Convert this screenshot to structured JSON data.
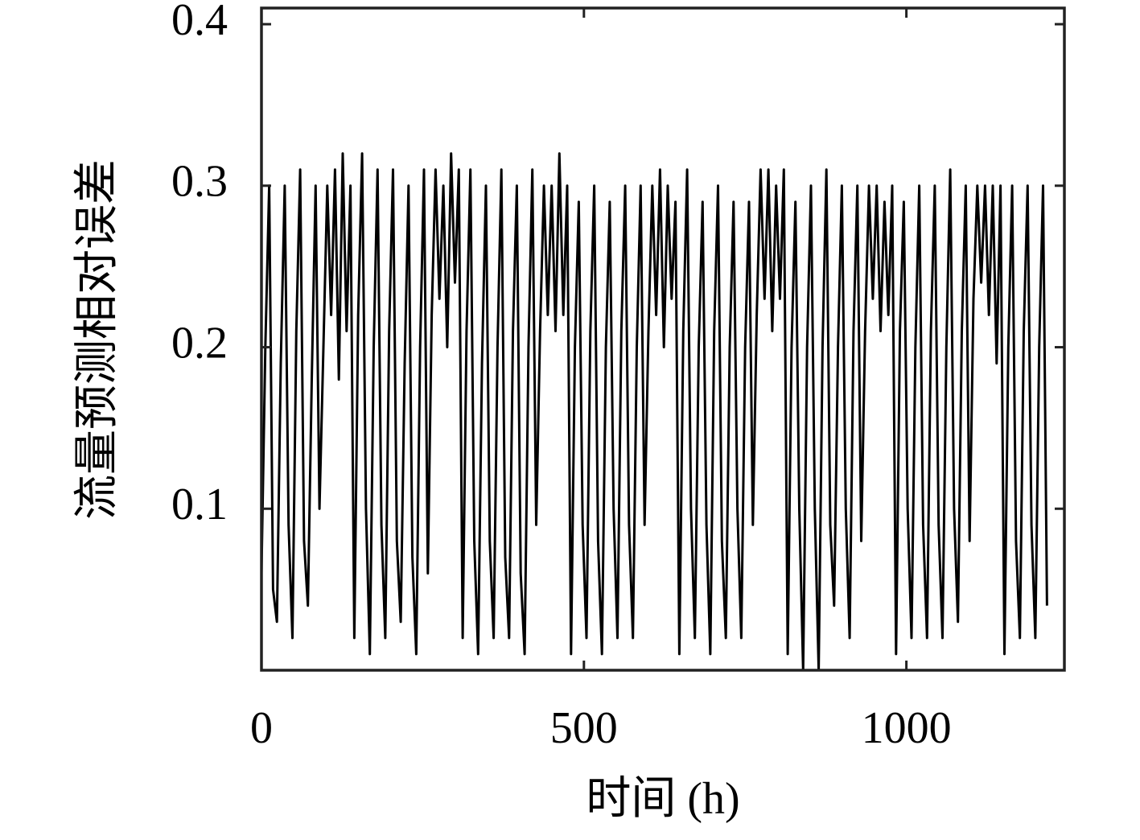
{
  "chart_data": {
    "type": "line",
    "xlabel": "时间 (h)",
    "ylabel": "流量预测相对误差",
    "color": "#000000",
    "xlim": [
      0,
      1245
    ],
    "ylim": [
      0,
      0.41
    ],
    "xticks": [
      0,
      500,
      1000
    ],
    "yticks": [
      0.1,
      0.2,
      0.3,
      0.4
    ],
    "x": [
      0,
      6,
      12,
      18,
      24,
      30,
      36,
      42,
      48,
      54,
      60,
      66,
      72,
      78,
      84,
      90,
      96,
      102,
      108,
      114,
      120,
      126,
      132,
      138,
      144,
      150,
      156,
      162,
      168,
      174,
      180,
      186,
      192,
      198,
      204,
      210,
      216,
      222,
      228,
      234,
      240,
      246,
      252,
      258,
      264,
      270,
      276,
      282,
      288,
      294,
      300,
      306,
      312,
      318,
      324,
      330,
      336,
      342,
      348,
      354,
      360,
      366,
      372,
      378,
      384,
      390,
      396,
      402,
      408,
      414,
      420,
      426,
      432,
      438,
      444,
      450,
      456,
      462,
      468,
      474,
      480,
      486,
      492,
      498,
      504,
      510,
      516,
      522,
      528,
      534,
      540,
      546,
      552,
      558,
      564,
      570,
      576,
      582,
      588,
      594,
      600,
      606,
      612,
      618,
      624,
      630,
      636,
      642,
      648,
      654,
      660,
      666,
      672,
      678,
      684,
      690,
      696,
      702,
      708,
      714,
      720,
      726,
      732,
      738,
      744,
      750,
      756,
      762,
      768,
      774,
      780,
      786,
      792,
      798,
      804,
      810,
      816,
      822,
      828,
      834,
      840,
      846,
      852,
      858,
      864,
      870,
      876,
      882,
      888,
      894,
      900,
      906,
      912,
      918,
      924,
      930,
      936,
      942,
      948,
      954,
      960,
      966,
      972,
      978,
      984,
      990,
      996,
      1002,
      1008,
      1014,
      1020,
      1026,
      1032,
      1038,
      1044,
      1050,
      1056,
      1062,
      1068,
      1074,
      1080,
      1086,
      1092,
      1098,
      1104,
      1110,
      1116,
      1122,
      1128,
      1134,
      1140,
      1146,
      1152,
      1158,
      1164,
      1170,
      1176,
      1182,
      1188,
      1194,
      1200,
      1206,
      1212,
      1218
    ],
    "values": [
      0.06,
      0.2,
      0.3,
      0.05,
      0.03,
      0.19,
      0.3,
      0.09,
      0.02,
      0.21,
      0.31,
      0.08,
      0.04,
      0.18,
      0.3,
      0.1,
      0.2,
      0.3,
      0.22,
      0.31,
      0.18,
      0.32,
      0.21,
      0.3,
      0.02,
      0.22,
      0.32,
      0.1,
      0.01,
      0.2,
      0.31,
      0.09,
      0.02,
      0.21,
      0.31,
      0.08,
      0.03,
      0.19,
      0.3,
      0.07,
      0.01,
      0.2,
      0.31,
      0.06,
      0.22,
      0.31,
      0.23,
      0.3,
      0.2,
      0.32,
      0.24,
      0.31,
      0.02,
      0.21,
      0.31,
      0.08,
      0.01,
      0.19,
      0.3,
      0.08,
      0.02,
      0.2,
      0.31,
      0.07,
      0.02,
      0.21,
      0.3,
      0.06,
      0.01,
      0.2,
      0.31,
      0.09,
      0.21,
      0.3,
      0.22,
      0.3,
      0.21,
      0.32,
      0.22,
      0.3,
      0.01,
      0.2,
      0.29,
      0.09,
      0.02,
      0.21,
      0.3,
      0.08,
      0.01,
      0.2,
      0.29,
      0.1,
      0.02,
      0.21,
      0.3,
      0.09,
      0.02,
      0.2,
      0.3,
      0.09,
      0.21,
      0.3,
      0.22,
      0.31,
      0.2,
      0.3,
      0.23,
      0.29,
      0.01,
      0.21,
      0.31,
      0.1,
      0.02,
      0.2,
      0.29,
      0.09,
      0.01,
      0.21,
      0.3,
      0.08,
      0.02,
      0.2,
      0.29,
      0.1,
      0.02,
      0.2,
      0.29,
      0.09,
      0.22,
      0.31,
      0.23,
      0.31,
      0.21,
      0.3,
      0.23,
      0.31,
      0.01,
      0.2,
      0.29,
      0.1,
      0.0,
      0.2,
      0.3,
      0.1,
      0.0,
      0.2,
      0.31,
      0.09,
      0.04,
      0.2,
      0.3,
      0.1,
      0.02,
      0.21,
      0.3,
      0.08,
      0.21,
      0.3,
      0.23,
      0.3,
      0.21,
      0.29,
      0.22,
      0.3,
      0.01,
      0.21,
      0.29,
      0.1,
      0.02,
      0.2,
      0.3,
      0.09,
      0.02,
      0.21,
      0.3,
      0.09,
      0.02,
      0.2,
      0.31,
      0.1,
      0.03,
      0.21,
      0.3,
      0.08,
      0.23,
      0.3,
      0.24,
      0.3,
      0.22,
      0.3,
      0.19,
      0.3,
      0.01,
      0.2,
      0.3,
      0.08,
      0.02,
      0.21,
      0.3,
      0.09,
      0.02,
      0.2,
      0.3,
      0.04
    ]
  }
}
